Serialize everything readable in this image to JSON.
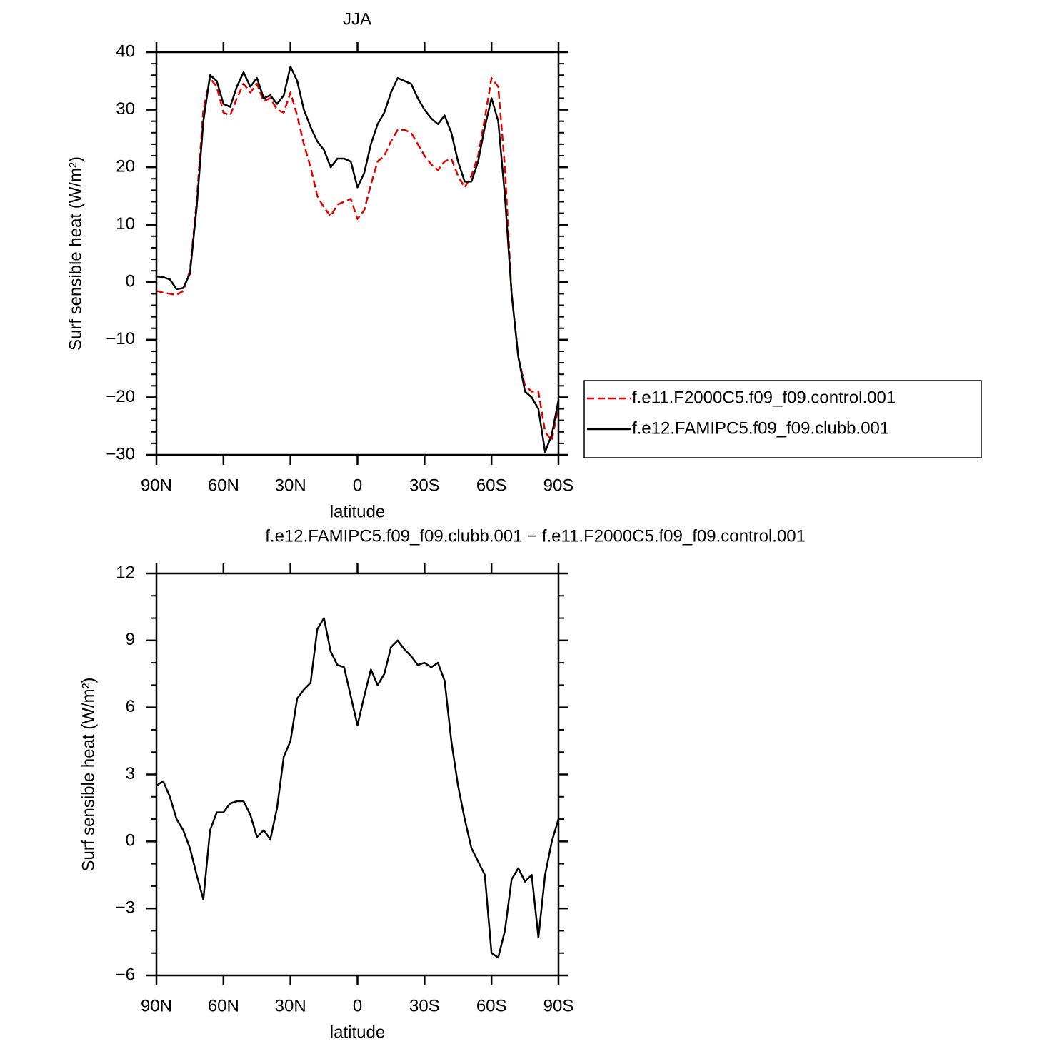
{
  "chart_data": [
    {
      "type": "line",
      "title": "JJA",
      "xlabel": "latitude",
      "ylabel": "Surf sensible heat (W/m²)",
      "x": [
        90,
        87,
        84,
        81,
        78,
        75,
        72,
        69,
        66,
        63,
        60,
        57,
        54,
        51,
        48,
        45,
        42,
        39,
        36,
        33,
        30,
        27,
        24,
        21,
        18,
        15,
        12,
        9,
        6,
        3,
        0,
        -3,
        -6,
        -9,
        -12,
        -15,
        -18,
        -21,
        -24,
        -27,
        -30,
        -33,
        -36,
        -39,
        -42,
        -45,
        -48,
        -51,
        -54,
        -57,
        -60,
        -63,
        -66,
        -69,
        -72,
        -75,
        -78,
        -81,
        -84,
        -87,
        -90
      ],
      "xlim": [
        90,
        -90
      ],
      "xticks": [
        {
          "value": 90,
          "label": "90N"
        },
        {
          "value": 60,
          "label": "60N"
        },
        {
          "value": 30,
          "label": "30N"
        },
        0,
        {
          "value": -30,
          "label": "30S"
        },
        {
          "value": -60,
          "label": "60S"
        },
        {
          "value": -90,
          "label": "90S"
        }
      ],
      "ylim": [
        -30,
        40
      ],
      "yticks": [
        {
          "value": -30,
          "label": "−30"
        },
        {
          "value": -20,
          "label": "−20"
        },
        {
          "value": -10,
          "label": "−10"
        },
        0,
        10,
        20,
        30,
        40
      ],
      "legend": "right",
      "series": [
        {
          "name": "f.e11.F2000C5.f09_f09.control.001",
          "color": "#e00000",
          "style": "dashed",
          "values": [
            -1.5,
            -1.8,
            -2.0,
            -2.2,
            -1.5,
            2,
            14,
            30,
            35.5,
            34,
            29.5,
            29,
            32,
            34.5,
            33,
            34.5,
            31.5,
            32,
            30,
            29.5,
            33,
            29,
            24,
            20,
            15,
            13,
            11.5,
            13.5,
            14,
            14.5,
            11,
            12.5,
            17,
            21,
            22,
            24.5,
            26.5,
            26.5,
            26,
            24,
            22,
            20.5,
            19.5,
            21,
            21.5,
            18.5,
            16.5,
            18.5,
            22,
            28.5,
            35.5,
            34,
            20,
            -2,
            -13,
            -18,
            -19,
            -19,
            -26,
            -27.5,
            -21.5
          ]
        },
        {
          "name": "f.e12.FAMIPC5.f09_f09.clubb.001",
          "color": "#000000",
          "style": "solid",
          "values": [
            1.0,
            0.9,
            0.5,
            -1.2,
            -1.0,
            1.5,
            13,
            28,
            36,
            35,
            31,
            30.5,
            34,
            36.5,
            34,
            35.5,
            32,
            32.5,
            31,
            32.5,
            37.5,
            35,
            30,
            27,
            24.5,
            23,
            20,
            21.5,
            21.5,
            21,
            16.5,
            19,
            24,
            27.5,
            29.5,
            33,
            35.5,
            35,
            34.5,
            32,
            30,
            28.5,
            27.5,
            29,
            26,
            21,
            17.5,
            17.5,
            21,
            27,
            32,
            28,
            15,
            -2,
            -13,
            -19,
            -20,
            -22,
            -29.5,
            -26.5,
            -20.5
          ]
        }
      ]
    },
    {
      "type": "line",
      "title": "f.e12.FAMIPC5.f09_f09.clubb.001 − f.e11.F2000C5.f09_f09.control.001",
      "xlabel": "latitude",
      "ylabel": "Surf sensible heat (W/m²)",
      "x": [
        90,
        87,
        84,
        81,
        78,
        75,
        72,
        69,
        66,
        63,
        60,
        57,
        54,
        51,
        48,
        45,
        42,
        39,
        36,
        33,
        30,
        27,
        24,
        21,
        18,
        15,
        12,
        9,
        6,
        3,
        0,
        -3,
        -6,
        -9,
        -12,
        -15,
        -18,
        -21,
        -24,
        -27,
        -30,
        -33,
        -36,
        -39,
        -42,
        -45,
        -48,
        -51,
        -54,
        -57,
        -60,
        -63,
        -66,
        -69,
        -72,
        -75,
        -78,
        -81,
        -84,
        -87,
        -90
      ],
      "xlim": [
        90,
        -90
      ],
      "xticks": [
        {
          "value": 90,
          "label": "90N"
        },
        {
          "value": 60,
          "label": "60N"
        },
        {
          "value": 30,
          "label": "30N"
        },
        0,
        {
          "value": -30,
          "label": "30S"
        },
        {
          "value": -60,
          "label": "60S"
        },
        {
          "value": -90,
          "label": "90S"
        }
      ],
      "ylim": [
        -6,
        12
      ],
      "yticks": [
        {
          "value": -6,
          "label": "−6"
        },
        {
          "value": -3,
          "label": "−3"
        },
        0,
        3,
        6,
        9,
        12
      ],
      "series": [
        {
          "color": "#000000",
          "style": "solid",
          "values": [
            2.5,
            2.7,
            2.0,
            1.0,
            0.5,
            -0.3,
            -1.5,
            -2.6,
            0.5,
            1.3,
            1.3,
            1.7,
            1.8,
            1.8,
            1.2,
            0.2,
            0.5,
            0.1,
            1.5,
            3.8,
            4.5,
            6.4,
            6.8,
            7.1,
            9.5,
            10.0,
            8.5,
            7.9,
            7.8,
            6.5,
            5.2,
            6.5,
            7.7,
            7.0,
            7.5,
            8.7,
            9.0,
            8.6,
            8.3,
            7.9,
            8.0,
            7.8,
            8.0,
            7.2,
            4.5,
            2.5,
            1.0,
            -0.3,
            -0.9,
            -1.5,
            -5.0,
            -5.2,
            -4.0,
            -1.7,
            -1.2,
            -1.8,
            -1.5,
            -4.3,
            -1.5,
            0.0,
            1.0
          ]
        }
      ]
    }
  ]
}
